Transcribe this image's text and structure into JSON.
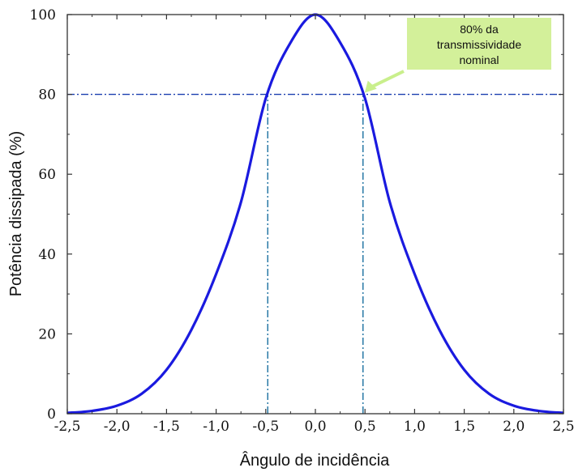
{
  "chart_data": {
    "type": "line",
    "xlabel": "Ângulo de incidência",
    "ylabel": "Potência dissipada (%)",
    "xlim": [
      -2.5,
      2.5
    ],
    "ylim": [
      0,
      100
    ],
    "x_ticks": [
      "-2,5",
      "-2,0",
      "-1,5",
      "-1,0",
      "-0,5",
      "0,0",
      "0,5",
      "1,0",
      "1,5",
      "2,0",
      "2,5"
    ],
    "y_ticks": [
      "0",
      "20",
      "40",
      "60",
      "80",
      "100"
    ],
    "series": [
      {
        "color": "#1a1adf",
        "x": [
          -2.5,
          -2.25,
          -2.0,
          -1.75,
          -1.5,
          -1.25,
          -1.0,
          -0.75,
          -0.5,
          -0.25,
          0.0,
          0.25,
          0.5,
          0.75,
          1.0,
          1.25,
          1.5,
          1.75,
          2.0,
          2.25,
          2.5
        ],
        "y": [
          0.2,
          0.7,
          2.0,
          5.0,
          11.0,
          21.0,
          35.0,
          53.0,
          79.0,
          93.0,
          100.0,
          93.0,
          79.0,
          53.0,
          35.0,
          21.0,
          11.0,
          5.0,
          2.0,
          0.7,
          0.2
        ]
      }
    ],
    "reference_lines": [
      {
        "orientation": "horizontal",
        "value": 80,
        "color": "#1a3fb0",
        "style": "dash-dot"
      },
      {
        "orientation": "vertical",
        "value": -0.48,
        "color": "#1a6fa0",
        "style": "dash-dot",
        "from": 0,
        "to": 80
      },
      {
        "orientation": "vertical",
        "value": 0.48,
        "color": "#1a6fa0",
        "style": "dash-dot",
        "from": 0,
        "to": 80
      }
    ],
    "annotation": {
      "lines": [
        "80% da",
        "transmissividade",
        "nominal"
      ],
      "box_color": "#d3f09a",
      "arrow_color": "#c9ef8c",
      "points_to": {
        "x": 0.48,
        "y": 80
      }
    },
    "grid": false
  }
}
